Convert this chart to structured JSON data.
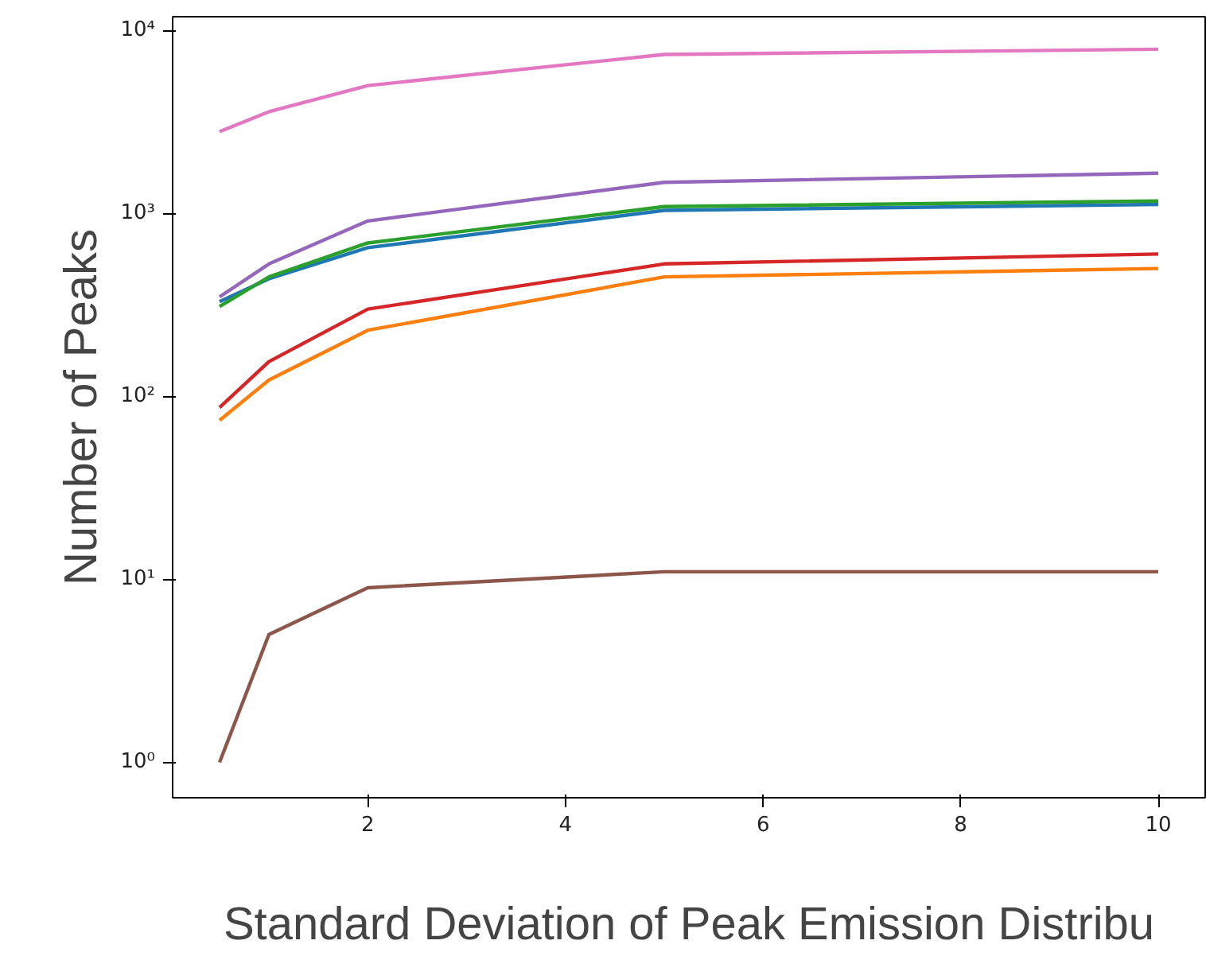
{
  "chart_data": {
    "type": "line",
    "xlabel": "Standard Deviation of Peak Emission Distribu",
    "ylabel": "Number of Peaks",
    "log": "y",
    "grid": false,
    "x": [
      0.5,
      1,
      2,
      5,
      10
    ],
    "xlim": [
      0.025,
      10.475
    ],
    "xticks": [
      2,
      4,
      6,
      8,
      10
    ],
    "ylim": [
      0.64,
      11900
    ],
    "yticks": [
      {
        "value": 1,
        "label": "10⁰"
      },
      {
        "value": 10,
        "label": "10¹"
      },
      {
        "value": 100,
        "label": "10²"
      },
      {
        "value": 1000,
        "label": "10³"
      },
      {
        "value": 10000,
        "label": "10⁴"
      }
    ],
    "series": [
      {
        "color": "#1f77b4",
        "values": [
          330,
          440,
          650,
          1040,
          1120
        ]
      },
      {
        "color": "#ff7f0e",
        "values": [
          74,
          123,
          230,
          450,
          500
        ]
      },
      {
        "color": "#2ca02c",
        "values": [
          310,
          450,
          690,
          1090,
          1170
        ]
      },
      {
        "color": "#d62728",
        "values": [
          87,
          155,
          300,
          530,
          600
        ]
      },
      {
        "color": "#9467bd",
        "values": [
          350,
          530,
          910,
          1480,
          1660
        ]
      },
      {
        "color": "#8c564b",
        "values": [
          1,
          5,
          9,
          11,
          11
        ]
      },
      {
        "color": "#e377c2",
        "values": [
          2800,
          3600,
          5000,
          7400,
          7900
        ]
      }
    ]
  }
}
